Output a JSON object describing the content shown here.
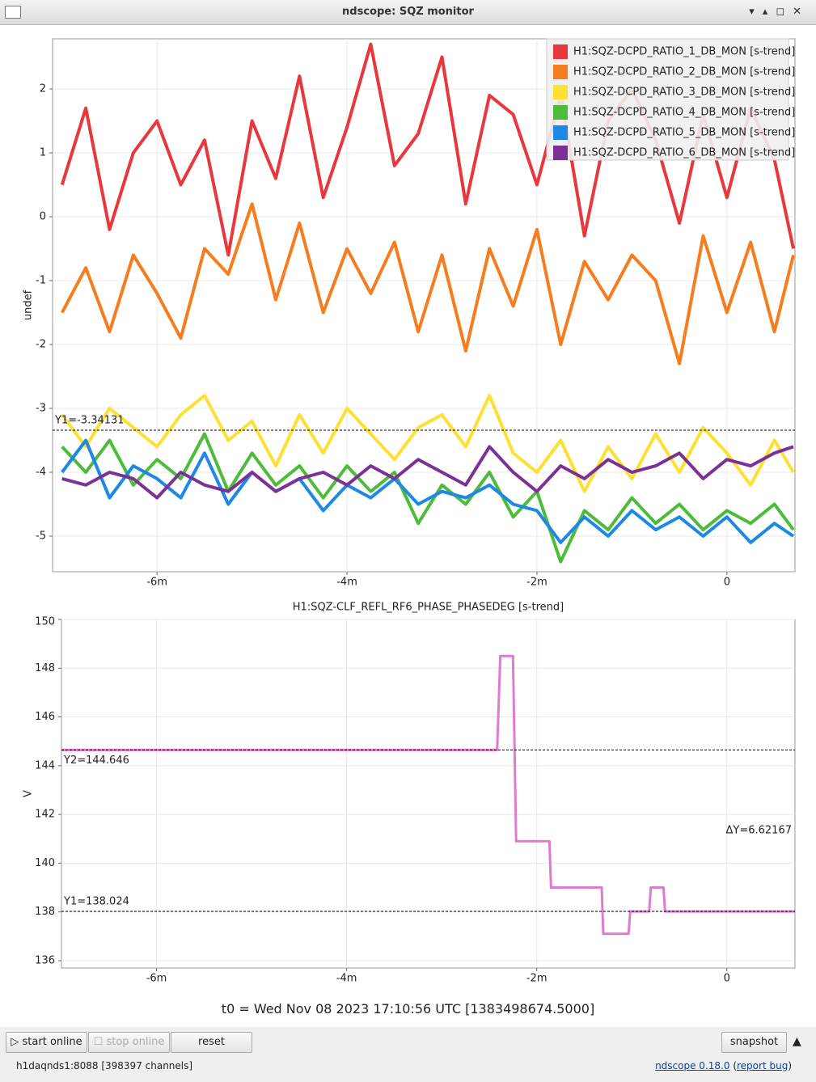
{
  "window_title": "ndscope: SQZ monitor",
  "chart_data": [
    {
      "type": "line",
      "ylabel": "undef",
      "legend": "upper right",
      "grid": true,
      "xlim": [
        -426,
        43
      ],
      "ylim": [
        -5.557,
        2.785
      ],
      "xticks": [
        {
          "value": -360,
          "label": "-6m"
        },
        {
          "value": -240,
          "label": "-4m"
        },
        {
          "value": -120,
          "label": "-2m"
        },
        0
      ],
      "yticks": [
        -5,
        -4,
        -3,
        -2,
        -1,
        0,
        1,
        2
      ],
      "x": [
        -420,
        -405,
        -390,
        -375,
        -360,
        -345,
        -330,
        -315,
        -300,
        -285,
        -270,
        -255,
        -240,
        -225,
        -210,
        -195,
        -180,
        -165,
        -150,
        -135,
        -120,
        -105,
        -90,
        -75,
        -60,
        -45,
        -30,
        -15,
        0,
        15,
        30,
        42
      ],
      "series": [
        {
          "name": "H1:SQZ-DCPD_RATIO_1_DB_MON [s-trend]",
          "color": "#e8383d",
          "values": [
            0.5,
            1.7,
            -0.2,
            1.0,
            1.5,
            0.5,
            1.2,
            -0.6,
            1.5,
            0.6,
            2.2,
            0.3,
            1.4,
            2.7,
            0.8,
            1.3,
            2.5,
            0.2,
            1.9,
            1.6,
            0.5,
            1.9,
            -0.3,
            1.5,
            2.0,
            1.2,
            -0.1,
            1.6,
            0.3,
            1.7,
            0.9,
            -0.5
          ]
        },
        {
          "name": "H1:SQZ-DCPD_RATIO_2_DB_MON [s-trend]",
          "color": "#f57d20",
          "values": [
            -1.5,
            -0.8,
            -1.8,
            -0.6,
            -1.2,
            -1.9,
            -0.5,
            -0.9,
            0.2,
            -1.3,
            -0.1,
            -1.5,
            -0.5,
            -1.2,
            -0.4,
            -1.8,
            -0.6,
            -2.1,
            -0.5,
            -1.4,
            -0.2,
            -2.0,
            -0.7,
            -1.3,
            -0.6,
            -1.0,
            -2.3,
            -0.3,
            -1.5,
            -0.4,
            -1.8,
            -0.6
          ]
        },
        {
          "name": "H1:SQZ-DCPD_RATIO_3_DB_MON [s-trend]",
          "color": "#fde030",
          "values": [
            -3.1,
            -3.6,
            -3.0,
            -3.3,
            -3.6,
            -3.1,
            -2.8,
            -3.5,
            -3.2,
            -3.9,
            -3.1,
            -3.7,
            -3.0,
            -3.4,
            -3.8,
            -3.3,
            -3.1,
            -3.6,
            -2.8,
            -3.7,
            -4.0,
            -3.5,
            -4.3,
            -3.6,
            -4.1,
            -3.4,
            -4.0,
            -3.3,
            -3.7,
            -4.2,
            -3.5,
            -4.0
          ]
        },
        {
          "name": "H1:SQZ-DCPD_RATIO_4_DB_MON [s-trend]",
          "color": "#4cbc3a",
          "values": [
            -3.6,
            -4.0,
            -3.5,
            -4.2,
            -3.8,
            -4.1,
            -3.4,
            -4.3,
            -3.7,
            -4.2,
            -3.9,
            -4.4,
            -3.9,
            -4.3,
            -4.0,
            -4.8,
            -4.2,
            -4.5,
            -4.0,
            -4.7,
            -4.3,
            -5.4,
            -4.6,
            -4.9,
            -4.4,
            -4.8,
            -4.5,
            -4.9,
            -4.6,
            -4.8,
            -4.5,
            -4.9
          ]
        },
        {
          "name": "H1:SQZ-DCPD_RATIO_5_DB_MON [s-trend]",
          "color": "#1e88e5",
          "values": [
            -4.0,
            -3.5,
            -4.4,
            -3.9,
            -4.1,
            -4.4,
            -3.7,
            -4.5,
            -4.0,
            -4.3,
            -4.1,
            -4.6,
            -4.2,
            -4.4,
            -4.1,
            -4.5,
            -4.3,
            -4.4,
            -4.2,
            -4.5,
            -4.6,
            -5.1,
            -4.7,
            -5.0,
            -4.6,
            -4.9,
            -4.7,
            -5.0,
            -4.7,
            -5.1,
            -4.8,
            -5.0
          ]
        },
        {
          "name": "H1:SQZ-DCPD_RATIO_6_DB_MON [s-trend]",
          "color": "#7b3294",
          "values": [
            -4.1,
            -4.2,
            -4.0,
            -4.1,
            -4.4,
            -4.0,
            -4.2,
            -4.3,
            -4.0,
            -4.3,
            -4.1,
            -4.0,
            -4.2,
            -3.9,
            -4.1,
            -3.8,
            -4.0,
            -4.2,
            -3.6,
            -4.0,
            -4.3,
            -3.9,
            -4.1,
            -3.8,
            -4.0,
            -3.9,
            -3.7,
            -4.1,
            -3.8,
            -3.9,
            -3.7,
            -3.6
          ]
        }
      ],
      "cursors": [
        {
          "value": -3.34131,
          "label": "Y1=-3.34131"
        }
      ]
    },
    {
      "type": "line",
      "title": "H1:SQZ-CLF_REFL_RF6_PHASE_PHASEDEG [s-trend]",
      "ylabel": "V",
      "grid": true,
      "xlim": [
        -420,
        43
      ],
      "ylim": [
        135.7,
        150
      ],
      "xticks": [
        {
          "value": -360,
          "label": "-6m"
        },
        {
          "value": -240,
          "label": "-4m"
        },
        {
          "value": -120,
          "label": "-2m"
        },
        0
      ],
      "yticks": [
        136,
        138,
        140,
        142,
        144,
        146,
        148,
        150
      ],
      "x": [
        -420,
        -145,
        -143,
        -135,
        -133,
        -112,
        -111,
        -79,
        -78,
        -62,
        -61,
        -49,
        -48,
        -40,
        -39,
        43
      ],
      "series": [
        {
          "color": "#e07ad0",
          "values": [
            144.646,
            144.646,
            148.5,
            148.5,
            140.9,
            140.9,
            139,
            139,
            137.1,
            137.1,
            138.02,
            138.02,
            139,
            139,
            138.02,
            138.02
          ]
        }
      ],
      "cursors": [
        {
          "value": 144.646,
          "label": "Y2=144.646"
        },
        {
          "value": 138.024,
          "label": "Y1=138.024"
        }
      ],
      "delta": "ΔY=6.62167"
    }
  ],
  "t0": "t0 = Wed Nov 08 2023 17:10:56 UTC [1383498674.5000]",
  "buttons": [
    "start online",
    "stop online",
    "reset",
    "snapshot"
  ],
  "status": "h1daqnds1:8088  [398397 channels]",
  "about": {
    "version": "ndscope 0.18.0",
    "open": "(",
    "bug": "report bug",
    "close": ")"
  }
}
